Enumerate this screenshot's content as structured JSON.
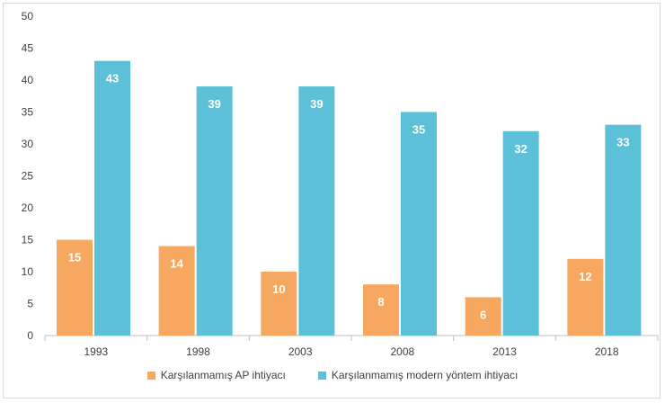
{
  "chart_data": {
    "type": "bar",
    "categories": [
      "1993",
      "1998",
      "2003",
      "2008",
      "2013",
      "2018"
    ],
    "series": [
      {
        "name": "Karşılanmamış AP ihtiyacı",
        "color": "#f7a860",
        "values": [
          15,
          14,
          10,
          8,
          6,
          12
        ]
      },
      {
        "name": "Karşılanmamış modern yöntem ihtiyacı",
        "color": "#5bc0d8",
        "values": [
          43,
          39,
          39,
          35,
          32,
          33
        ]
      }
    ],
    "title": "",
    "xlabel": "",
    "ylabel": "",
    "ylim": [
      0,
      50
    ],
    "yticks": [
      "0",
      "5",
      "10",
      "15",
      "20",
      "25",
      "30",
      "35",
      "40",
      "45",
      "50"
    ],
    "grid": false,
    "legend_position": "bottom",
    "data_labels": true
  }
}
